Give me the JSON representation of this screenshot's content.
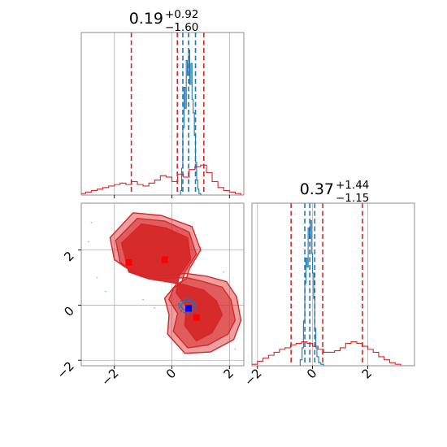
{
  "chart_data": [
    {
      "type": "histogram",
      "panel": "marginal-x",
      "title": {
        "value": "0.19",
        "plus": "+0.92",
        "minus": "−1.60"
      },
      "xlim": [
        -3.15,
        2.5
      ],
      "xticks": [
        -2,
        0,
        2
      ],
      "grid": true,
      "series": [
        {
          "color": "#1f77b4",
          "x": [
            0.22,
            0.3,
            0.34,
            0.38,
            0.42,
            0.46,
            0.5,
            0.54,
            0.58,
            0.62,
            0.66,
            0.7,
            0.74,
            0.78,
            0.82,
            0.86,
            0.9,
            0.94,
            1.0
          ],
          "values": [
            0.0,
            0.03,
            0.18,
            0.45,
            0.72,
            0.58,
            0.9,
            0.8,
            0.97,
            0.74,
            0.88,
            0.64,
            0.55,
            0.4,
            0.22,
            0.1,
            0.04,
            0.01,
            0.0
          ],
          "quantiles": [
            0.38,
            0.58,
            0.82
          ]
        },
        {
          "color": "#d62728",
          "x": [
            -3.15,
            -3.0,
            -2.8,
            -2.6,
            -2.4,
            -2.2,
            -2.0,
            -1.8,
            -1.6,
            -1.4,
            -1.2,
            -1.0,
            -0.8,
            -0.6,
            -0.4,
            -0.2,
            0.0,
            0.2,
            0.4,
            0.6,
            0.8,
            1.0,
            1.2,
            1.4,
            1.6,
            1.8,
            2.0,
            2.2,
            2.4
          ],
          "values": [
            0.01,
            0.02,
            0.03,
            0.04,
            0.05,
            0.06,
            0.07,
            0.08,
            0.07,
            0.09,
            0.07,
            0.06,
            0.08,
            0.1,
            0.13,
            0.12,
            0.09,
            0.14,
            0.12,
            0.17,
            0.19,
            0.2,
            0.15,
            0.09,
            0.05,
            0.03,
            0.02,
            0.01,
            0.0
          ],
          "quantiles": [
            -1.41,
            0.19,
            1.11
          ]
        }
      ]
    },
    {
      "type": "contour",
      "panel": "joint",
      "xlim": [
        -3.15,
        2.5
      ],
      "ylim": [
        -2.2,
        3.7
      ],
      "xticks": [
        -2,
        0,
        2
      ],
      "yticks": [
        -2,
        0,
        2
      ],
      "grid": true,
      "series": [
        {
          "color": "#d62728",
          "levels": [
            "M -1.75 2.25 L -1.05 2.95 L -0.2 2.8 L 0.55 2.45 L 0.65 1.65 L 0.25 1.05 L 0.15 0.45 L 0.5 -0.05 L 0.45 -0.75 L 0.85 -1.3 L 1.4 -1.0 L 1.75 -0.35 L 1.55 0.15 L 1.1 0.55 L 0.4 0.75 L -0.2 0.85 L -0.8 0.95 L -1.5 1.2 Z",
            "M -1.95 2.35 L -1.2 3.15 L -0.25 3.05 L 0.6 2.65 L 0.85 1.85 L 0.45 1.2 L 0.35 0.85 L 0.05 0.6 L -0.1 0.2 L 0.2 -0.3 L 0.05 -0.95 L 0.55 -1.55 L 1.25 -1.45 L 1.95 -1.05 L 2.2 -0.55 L 2.05 0.2 L 1.75 0.65 L 1.1 0.85 L 0.5 1.0 L -0.4 0.95 L -1.1 1.05 L -1.8 1.55 Z",
            "M -2.15 2.45 L -1.35 3.35 L -0.35 3.25 L 0.7 2.85 L 1.0 2.0 L 0.6 1.3 L 0.5 0.95 L 0.15 0.75 L -0.25 0.25 L -0.1 -0.35 L -0.15 -1.05 L 0.45 -1.75 L 1.35 -1.7 L 2.15 -1.25 L 2.4 -0.55 L 2.25 0.3 L 1.9 0.85 L 1.2 1.05 L 0.5 1.15 L -0.5 1.05 L -1.3 1.15 L -2.0 1.65 Z"
          ]
        },
        {
          "color": "#1f77b4",
          "levels": [
            "M 0.22 0.0 L 0.36 0.22 L 0.64 0.26 L 0.84 0.05 L 0.8 -0.2 L 0.58 -0.32 L 0.34 -0.24 Z",
            "M 0.3 -0.02 L 0.42 0.14 L 0.62 0.16 L 0.76 0.02 L 0.72 -0.14 L 0.56 -0.22 L 0.4 -0.16 Z"
          ]
        },
        {
          "type": "markers",
          "color": "#ff0000",
          "points": [
            [
              -1.5,
              1.55
            ],
            [
              -0.25,
              1.65
            ],
            [
              0.85,
              -0.45
            ]
          ]
        },
        {
          "type": "markers",
          "color": "#0000ff",
          "points": [
            [
              0.58,
              -0.12
            ]
          ]
        }
      ]
    },
    {
      "type": "histogram",
      "panel": "marginal-y",
      "title": {
        "value": "0.37",
        "plus": "+1.44",
        "minus": "−1.15"
      },
      "xlim": [
        -2.2,
        3.7
      ],
      "xticks": [
        -2,
        0,
        2
      ],
      "grid": true,
      "series": [
        {
          "color": "#1f77b4",
          "x": [
            -0.55,
            -0.45,
            -0.38,
            -0.33,
            -0.28,
            -0.24,
            -0.2,
            -0.16,
            -0.12,
            -0.08,
            -0.04,
            0.0,
            0.04,
            0.08,
            0.12,
            0.16,
            0.22,
            0.3,
            0.4
          ],
          "values": [
            0.0,
            0.04,
            0.12,
            0.3,
            0.55,
            0.72,
            0.66,
            0.92,
            0.85,
            0.97,
            0.75,
            0.62,
            0.45,
            0.25,
            0.12,
            0.06,
            0.02,
            0.01,
            0.0
          ],
          "quantiles": [
            -0.28,
            -0.1,
            0.08
          ]
        },
        {
          "color": "#d62728",
          "x": [
            -2.2,
            -2.0,
            -1.8,
            -1.6,
            -1.4,
            -1.2,
            -1.0,
            -0.8,
            -0.6,
            -0.4,
            -0.2,
            0.0,
            0.2,
            0.4,
            0.6,
            0.8,
            1.0,
            1.2,
            1.4,
            1.6,
            1.8,
            2.0,
            2.2,
            2.4,
            2.6,
            2.8,
            3.0,
            3.2,
            3.4
          ],
          "values": [
            0.01,
            0.03,
            0.05,
            0.07,
            0.09,
            0.11,
            0.12,
            0.14,
            0.15,
            0.16,
            0.15,
            0.13,
            0.11,
            0.09,
            0.09,
            0.1,
            0.12,
            0.15,
            0.16,
            0.15,
            0.13,
            0.11,
            0.09,
            0.06,
            0.04,
            0.02,
            0.01,
            0.0,
            0.0
          ],
          "quantiles": [
            -0.78,
            0.37,
            1.81
          ]
        }
      ]
    }
  ]
}
